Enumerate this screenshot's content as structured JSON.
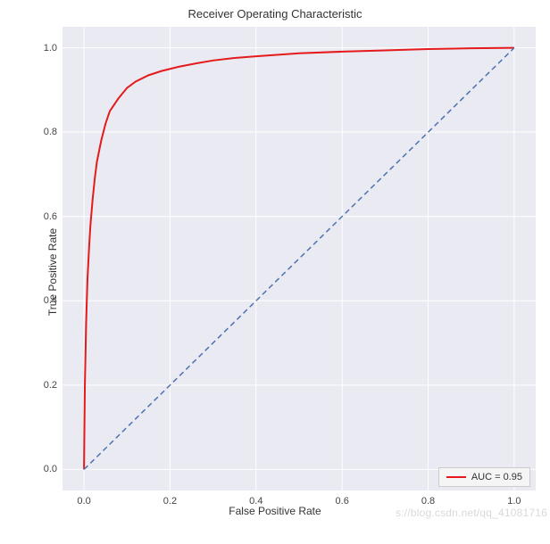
{
  "chart": {
    "type": "line",
    "title": "Receiver Operating Characteristic",
    "title_fontsize": 13,
    "xlabel": "False Positive Rate",
    "ylabel": "True Positive Rate",
    "label_fontsize": 12,
    "xlim": [
      -0.05,
      1.05
    ],
    "ylim": [
      -0.05,
      1.05
    ],
    "xticks": [
      0.0,
      0.2,
      0.4,
      0.6,
      0.8,
      1.0
    ],
    "yticks": [
      0.0,
      0.2,
      0.4,
      0.6,
      0.8,
      1.0
    ],
    "xtick_labels": [
      "0.0",
      "0.2",
      "0.4",
      "0.6",
      "0.8",
      "1.0"
    ],
    "ytick_labels": [
      "0.0",
      "0.2",
      "0.4",
      "0.6",
      "0.8",
      "1.0"
    ],
    "tick_fontsize": 11,
    "background_color": "#eaeaf2",
    "grid_color": "#ffffff",
    "grid_linewidth": 1,
    "figure_bg": "#ffffff",
    "series": [
      {
        "name": "roc",
        "label": "AUC = 0.95",
        "color": "#e41a1c",
        "linewidth": 2,
        "linestyle": "solid",
        "x": [
          0.0,
          0.002,
          0.005,
          0.008,
          0.012,
          0.015,
          0.02,
          0.025,
          0.03,
          0.04,
          0.05,
          0.06,
          0.08,
          0.1,
          0.12,
          0.15,
          0.18,
          0.22,
          0.26,
          0.3,
          0.35,
          0.4,
          0.5,
          0.6,
          0.7,
          0.8,
          0.9,
          1.0
        ],
        "y": [
          0.0,
          0.2,
          0.35,
          0.45,
          0.53,
          0.58,
          0.64,
          0.69,
          0.73,
          0.78,
          0.82,
          0.85,
          0.88,
          0.905,
          0.92,
          0.935,
          0.945,
          0.955,
          0.963,
          0.97,
          0.976,
          0.98,
          0.987,
          0.991,
          0.994,
          0.997,
          0.999,
          1.0
        ]
      },
      {
        "name": "diagonal",
        "label": null,
        "color": "#4c72b0",
        "linewidth": 1.5,
        "linestyle": "dashed",
        "dash_pattern": "6,4",
        "x": [
          0.0,
          1.0
        ],
        "y": [
          0.0,
          1.0
        ]
      }
    ],
    "legend": {
      "position": "lower right",
      "bg_color": "#f5f5f5",
      "border_color": "#cccccc",
      "fontsize": 11,
      "items": [
        {
          "label": "AUC = 0.95",
          "color": "#e41a1c"
        }
      ]
    }
  },
  "watermark": "s://blog.csdn.net/qq_41081716"
}
